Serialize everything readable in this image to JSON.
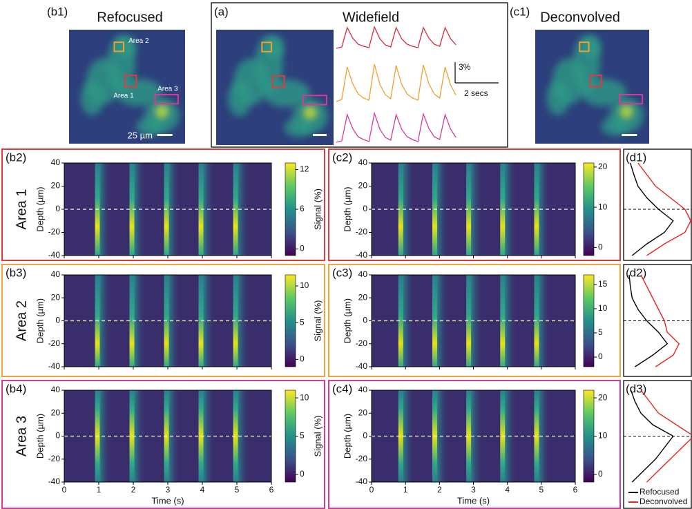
{
  "chart_data": [
    {
      "type": "line",
      "label": "(a)",
      "title": "Widefield",
      "x": [
        0,
        0.25,
        0.5,
        0.75,
        1,
        1.25,
        1.5,
        1.75,
        2,
        2.25,
        2.5,
        2.75,
        3,
        3.25,
        3.5,
        3.75,
        4,
        4.25,
        4.5,
        4.75,
        5,
        5.25,
        5.5
      ],
      "series": [
        {
          "color": "#d7263d",
          "values": [
            0,
            0.2,
            3,
            1.5,
            0.6,
            0.3,
            0.1,
            3.1,
            1.4,
            0.5,
            0.2,
            3,
            1.4,
            0.6,
            0.3,
            0.1,
            3,
            1.5,
            0.6,
            0.3,
            3,
            1.4,
            0.5
          ]
        },
        {
          "color": "#f0a030",
          "values": [
            0,
            0.3,
            5,
            2.6,
            1.1,
            0.5,
            0.2,
            5.4,
            2.5,
            1,
            0.4,
            5.2,
            2.5,
            1.1,
            0.5,
            0.2,
            5.3,
            2.6,
            1.1,
            0.5,
            5,
            2.4,
            0.9
          ]
        },
        {
          "color": "#d6399a",
          "values": [
            0,
            0.2,
            4,
            2,
            0.8,
            0.4,
            0.1,
            4.2,
            1.9,
            0.7,
            0.3,
            4,
            1.9,
            0.8,
            0.4,
            0.1,
            4.1,
            2,
            0.8,
            0.4,
            4,
            1.9,
            0.7
          ]
        }
      ],
      "scale_bar": {
        "y": 3,
        "y_label": "3%",
        "x": 2,
        "x_label": "2 secs"
      }
    },
    {
      "type": "heatmap",
      "label": "(b2)",
      "row_label": "Area 1",
      "ylabel": "Depth (µm)",
      "clabel": "Signal (%)",
      "frame_color": "#e03a3e",
      "xlim": [
        0,
        6
      ],
      "xticks": [
        0,
        1,
        2,
        3,
        4,
        5,
        6
      ],
      "ylim": [
        -40,
        40
      ],
      "yticks": [
        -40,
        -20,
        0,
        20,
        40
      ],
      "clim": [
        -1,
        13
      ],
      "cticks": [
        0,
        6,
        12
      ],
      "peak_times": [
        0.95,
        1.95,
        2.95,
        3.95,
        4.95
      ],
      "peak_depth": -15
    },
    {
      "type": "heatmap",
      "label": "(c2)",
      "ylabel": "Depth (µm)",
      "frame_color": "#e03a3e",
      "xlim": [
        0,
        6
      ],
      "xticks": [
        0,
        1,
        2,
        3,
        4,
        5,
        6
      ],
      "ylim": [
        -40,
        40
      ],
      "yticks": [
        -40,
        -20,
        0,
        20,
        40
      ],
      "clim": [
        -2,
        21
      ],
      "cticks": [
        0,
        10,
        20
      ],
      "peak_times": [
        0.85,
        1.85,
        2.85,
        3.85,
        4.85
      ],
      "peak_depth": -15
    },
    {
      "type": "profile",
      "label": "(d1)",
      "ylim": [
        -40,
        40
      ],
      "depths": [
        -40,
        -30,
        -20,
        -10,
        0,
        10,
        20,
        30,
        40
      ],
      "series": [
        {
          "color": "#000000",
          "values": [
            0.05,
            0.3,
            0.6,
            0.75,
            0.5,
            0.3,
            0.15,
            0.08,
            0.02
          ]
        },
        {
          "color": "#e8251f",
          "values": [
            0.3,
            0.6,
            0.95,
            1.05,
            0.95,
            0.7,
            0.45,
            0.3,
            0.15
          ]
        }
      ]
    },
    {
      "type": "heatmap",
      "label": "(b3)",
      "row_label": "Area 2",
      "ylabel": "Depth (µm)",
      "clabel": "Signal (%)",
      "frame_color": "#f2a33a",
      "xlim": [
        0,
        6
      ],
      "xticks": [
        0,
        1,
        2,
        3,
        4,
        5,
        6
      ],
      "ylim": [
        -40,
        40
      ],
      "yticks": [
        -40,
        -20,
        0,
        20,
        40
      ],
      "clim": [
        -1,
        11.5
      ],
      "cticks": [
        0,
        5,
        10
      ],
      "peak_times": [
        0.95,
        1.95,
        2.95,
        3.95,
        4.95
      ],
      "peak_depth": -20
    },
    {
      "type": "heatmap",
      "label": "(c3)",
      "ylabel": "Depth (µm)",
      "frame_color": "#f2a33a",
      "xlim": [
        0,
        6
      ],
      "xticks": [
        0,
        1,
        2,
        3,
        4,
        5,
        6
      ],
      "ylim": [
        -40,
        40
      ],
      "yticks": [
        -40,
        -20,
        0,
        20,
        40
      ],
      "clim": [
        -2,
        17
      ],
      "cticks": [
        0,
        5,
        10,
        15
      ],
      "peak_times": [
        0.85,
        1.85,
        2.85,
        3.85,
        4.85
      ],
      "peak_depth": -20
    },
    {
      "type": "profile",
      "label": "(d2)",
      "ylim": [
        -40,
        40
      ],
      "depths": [
        -40,
        -30,
        -20,
        -10,
        0,
        10,
        20,
        30,
        40
      ],
      "series": [
        {
          "color": "#000000",
          "values": [
            0.1,
            0.4,
            0.65,
            0.5,
            0.3,
            0.15,
            0.05,
            0.02,
            0
          ]
        },
        {
          "color": "#e8251f",
          "values": [
            0.45,
            0.75,
            0.85,
            0.65,
            0.6,
            0.5,
            0.4,
            0.3,
            0.2
          ]
        }
      ]
    },
    {
      "type": "heatmap",
      "label": "(b4)",
      "row_label": "Area 3",
      "ylabel": "Depth (µm)",
      "clabel": "Signal (%)",
      "xlabel": "Time (s)",
      "frame_color": "#d6399a",
      "xlim": [
        0,
        6
      ],
      "xticks": [
        0,
        1,
        2,
        3,
        4,
        5,
        6
      ],
      "ylim": [
        -40,
        40
      ],
      "yticks": [
        -40,
        -20,
        0,
        20,
        40
      ],
      "clim": [
        -1,
        11
      ],
      "cticks": [
        0,
        5,
        10
      ],
      "peak_times": [
        0.95,
        1.95,
        2.95,
        3.95,
        4.95
      ],
      "peak_depth": 0
    },
    {
      "type": "heatmap",
      "label": "(c4)",
      "ylabel": "Depth (µm)",
      "xlabel": "Time (s)",
      "frame_color": "#d6399a",
      "xlim": [
        0,
        6
      ],
      "xticks": [
        0,
        1,
        2,
        3,
        4,
        5,
        6
      ],
      "ylim": [
        -40,
        40
      ],
      "yticks": [
        -40,
        -20,
        0,
        20,
        40
      ],
      "clim": [
        -2,
        22
      ],
      "cticks": [
        0,
        10,
        20
      ],
      "peak_times": [
        0.85,
        1.85,
        2.85,
        3.85,
        4.85
      ],
      "peak_depth": 0
    },
    {
      "type": "profile",
      "label": "(d3)",
      "ylim": [
        -40,
        40
      ],
      "depths": [
        -40,
        -30,
        -20,
        -10,
        0,
        10,
        20,
        30,
        40
      ],
      "series": [
        {
          "name": "Refocused",
          "color": "#000000",
          "values": [
            0.05,
            0.25,
            0.45,
            0.6,
            0.75,
            0.4,
            0.2,
            0.1,
            0.03
          ]
        },
        {
          "name": "Deconvolved",
          "color": "#e8251f",
          "values": [
            0.3,
            0.5,
            0.7,
            0.9,
            1.1,
            0.8,
            0.5,
            0.35,
            0.2
          ]
        }
      ]
    }
  ],
  "images": [
    {
      "label": "(b1)",
      "title": "Refocused",
      "annotations": [
        "Area 2",
        "Area 1",
        "Area 3"
      ],
      "scale_bar": "25 µm"
    },
    {
      "label": "(c1)",
      "title": "Deconvolved"
    }
  ]
}
